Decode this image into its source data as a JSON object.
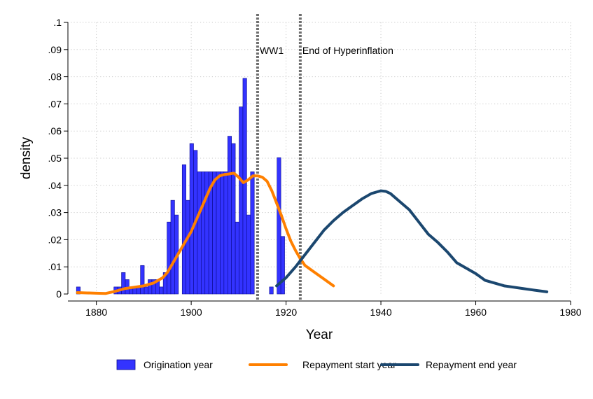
{
  "chart_data": {
    "type": "histogram+line",
    "xlabel": "Year",
    "ylabel": "density",
    "xlim": [
      1874,
      1980
    ],
    "ylim": [
      0,
      0.1
    ],
    "x_ticks": [
      1880,
      1900,
      1920,
      1940,
      1960,
      1980
    ],
    "y_ticks": [
      0,
      0.01,
      0.02,
      0.03,
      0.04,
      0.05,
      0.06,
      0.07,
      0.08,
      0.09,
      0.1
    ],
    "y_tick_labels": [
      "0",
      ".01",
      ".02",
      ".03",
      ".04",
      ".05",
      ".06",
      ".07",
      ".08",
      ".09",
      ".1"
    ],
    "grid": true,
    "vlines": [
      {
        "x": 1914,
        "label": "WW1"
      },
      {
        "x": 1923,
        "label": "End of Hyperinflation"
      }
    ],
    "histogram": {
      "name": "Origination year",
      "color": "#3333ff",
      "bin_width": 0.8,
      "bins": [
        [
          1875.8,
          0.0026
        ],
        [
          1883.7,
          0.0026
        ],
        [
          1884.5,
          0.0026
        ],
        [
          1885.3,
          0.0079
        ],
        [
          1886.1,
          0.0053
        ],
        [
          1886.9,
          0.0026
        ],
        [
          1887.7,
          0.0026
        ],
        [
          1888.5,
          0.0026
        ],
        [
          1889.3,
          0.0105
        ],
        [
          1890.1,
          0.0026
        ],
        [
          1890.9,
          0.0053
        ],
        [
          1891.7,
          0.0053
        ],
        [
          1892.5,
          0.0053
        ],
        [
          1893.3,
          0.0026
        ],
        [
          1894.1,
          0.0079
        ],
        [
          1894.9,
          0.0265
        ],
        [
          1895.7,
          0.0345
        ],
        [
          1896.5,
          0.0291
        ],
        [
          1897.3,
          0.0
        ],
        [
          1898.1,
          0.0476
        ],
        [
          1898.9,
          0.0345
        ],
        [
          1899.7,
          0.0554
        ],
        [
          1900.5,
          0.0529
        ],
        [
          1901.3,
          0.045
        ],
        [
          1902.1,
          0.045
        ],
        [
          1902.9,
          0.045
        ],
        [
          1903.7,
          0.045
        ],
        [
          1904.5,
          0.045
        ],
        [
          1905.3,
          0.045
        ],
        [
          1906.1,
          0.045
        ],
        [
          1906.9,
          0.045
        ],
        [
          1907.7,
          0.0581
        ],
        [
          1908.5,
          0.0554
        ],
        [
          1909.3,
          0.0265
        ],
        [
          1910.1,
          0.0689
        ],
        [
          1910.9,
          0.0794
        ],
        [
          1911.7,
          0.0291
        ],
        [
          1912.5,
          0.045
        ],
        [
          1913.3,
          0.0
        ],
        [
          1916.5,
          0.0026
        ],
        [
          1917.3,
          0.0
        ],
        [
          1918.1,
          0.0502
        ],
        [
          1918.9,
          0.0212
        ]
      ]
    },
    "series": [
      {
        "name": "Repayment start year",
        "color": "#ff8000",
        "x": [
          1876,
          1878,
          1880,
          1882,
          1884,
          1886,
          1888,
          1890,
          1892,
          1894,
          1895,
          1896,
          1897,
          1898,
          1899,
          1900,
          1901,
          1902,
          1903,
          1904,
          1905,
          1906,
          1907,
          1908,
          1909,
          1910,
          1911,
          1912,
          1913,
          1914,
          1915,
          1916,
          1917,
          1918,
          1919,
          1920,
          1921,
          1922,
          1923,
          1924,
          1926,
          1928,
          1930
        ],
        "y": [
          0.0005,
          0.0004,
          0.0003,
          0.0002,
          0.001,
          0.002,
          0.0025,
          0.003,
          0.004,
          0.006,
          0.008,
          0.011,
          0.014,
          0.017,
          0.02,
          0.023,
          0.027,
          0.031,
          0.035,
          0.039,
          0.042,
          0.0435,
          0.044,
          0.0442,
          0.0445,
          0.043,
          0.041,
          0.042,
          0.0435,
          0.0435,
          0.043,
          0.0415,
          0.038,
          0.0335,
          0.029,
          0.024,
          0.0195,
          0.016,
          0.013,
          0.0105,
          0.008,
          0.0055,
          0.003
        ]
      },
      {
        "name": "Repayment end year",
        "color": "#1b476f",
        "x": [
          1918,
          1920,
          1922,
          1924,
          1926,
          1928,
          1930,
          1932,
          1934,
          1936,
          1938,
          1939,
          1940,
          1941,
          1942,
          1944,
          1946,
          1948,
          1950,
          1952,
          1954,
          1956,
          1958,
          1960,
          1962,
          1964,
          1966,
          1968,
          1970,
          1972,
          1975
        ],
        "y": [
          0.003,
          0.006,
          0.01,
          0.0145,
          0.019,
          0.0235,
          0.027,
          0.03,
          0.0325,
          0.035,
          0.037,
          0.0375,
          0.038,
          0.0378,
          0.037,
          0.034,
          0.031,
          0.0265,
          0.022,
          0.019,
          0.0155,
          0.0115,
          0.0095,
          0.0075,
          0.005,
          0.004,
          0.003,
          0.0025,
          0.002,
          0.0015,
          0.0008
        ]
      }
    ],
    "legend": {
      "position": "bottom",
      "items": [
        {
          "label": "Origination year",
          "kind": "box",
          "color": "#3333ff"
        },
        {
          "label": "Repayment start year",
          "kind": "line",
          "color": "#ff8000"
        },
        {
          "label": "Repayment end year",
          "kind": "line",
          "color": "#1b476f"
        }
      ]
    }
  }
}
